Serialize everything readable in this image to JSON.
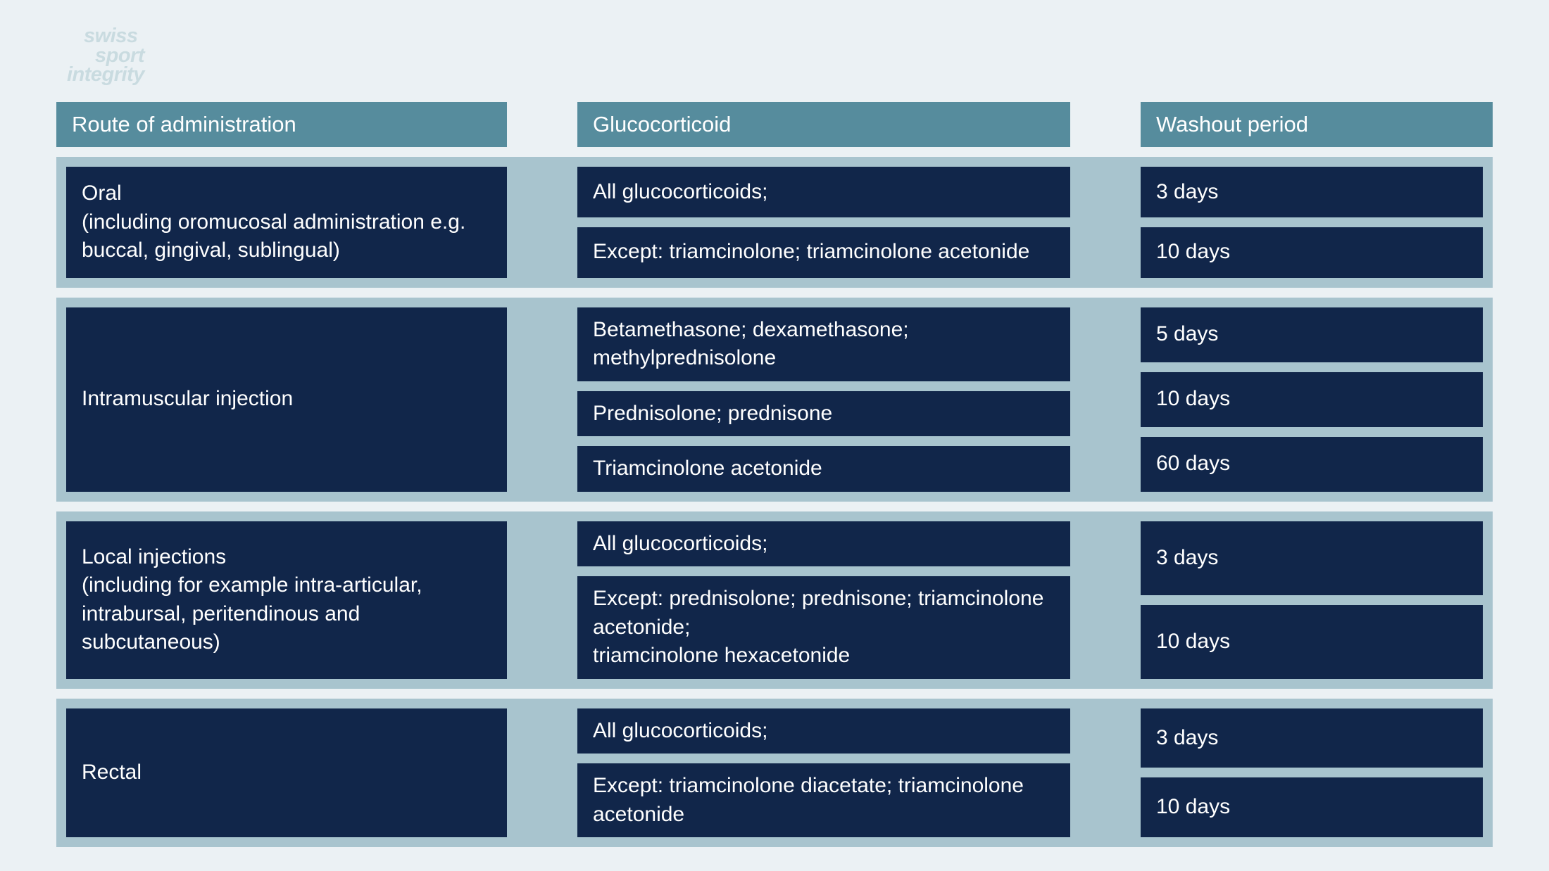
{
  "logo": {
    "line1": "swiss",
    "line2": "sport",
    "line3": "integrity"
  },
  "colors": {
    "page_bg": "#ebf1f4",
    "logo_text": "#c9dbe0",
    "header_bg": "#568c9d",
    "section_bg": "#a8c4ce",
    "cell_bg": "#11264a",
    "cell_text": "#ffffff"
  },
  "typography": {
    "header_fontsize": 31,
    "cell_fontsize": 30,
    "logo_fontsize": 29,
    "logo_weight": 700,
    "logo_style": "italic"
  },
  "layout": {
    "col_route_width": 640,
    "gap_route_gluco": 100,
    "col_gluco_width": 700,
    "gap_gluco_wash": 100,
    "section_padding": 14,
    "section_gap": 14,
    "cell_gap": 14
  },
  "headers": {
    "route": "Route of administration",
    "glucocorticoid": "Glucocorticoid",
    "washout": "Washout period"
  },
  "sections": [
    {
      "route": "Oral\n(including oromucosal administration e.g. buccal, gingival, sublingual)",
      "rows": [
        {
          "glucocorticoid": "All glucocorticoids;",
          "washout": "3 days"
        },
        {
          "glucocorticoid": "Except: triamcinolone; triamcinolone acetonide",
          "washout": "10 days"
        }
      ]
    },
    {
      "route": "Intramuscular injection",
      "rows": [
        {
          "glucocorticoid": "Betamethasone; dexamethasone; methylprednisolone",
          "washout": "5 days"
        },
        {
          "glucocorticoid": "Prednisolone; prednisone",
          "washout": "10 days"
        },
        {
          "glucocorticoid": "Triamcinolone acetonide",
          "washout": "60 days"
        }
      ]
    },
    {
      "route": "Local injections\n(including for example intra-articular, intrabursal, peritendinous and subcutaneous)",
      "rows": [
        {
          "glucocorticoid": "All glucocorticoids;",
          "washout": "3 days"
        },
        {
          "glucocorticoid": "Except: prednisolone; prednisone; triamcinolone acetonide;\ntriamcinolone hexacetonide",
          "washout": "10 days"
        }
      ]
    },
    {
      "route": "Rectal",
      "rows": [
        {
          "glucocorticoid": "All glucocorticoids;",
          "washout": "3 days"
        },
        {
          "glucocorticoid": "Except: triamcinolone diacetate; triamcinolone acetonide",
          "washout": "10 days"
        }
      ]
    }
  ]
}
